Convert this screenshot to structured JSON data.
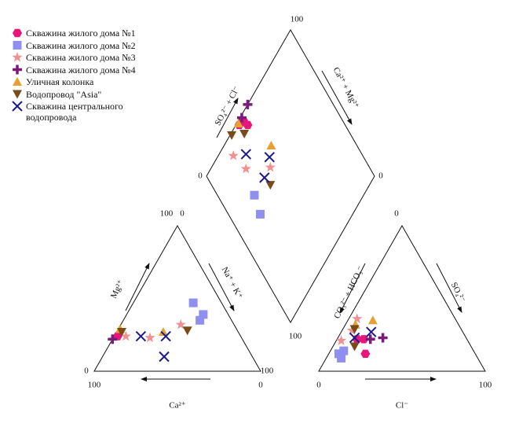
{
  "chart_data": {
    "type": "piper",
    "cation": {
      "axes": {
        "Mg": {
          "label": "Mg²⁺",
          "ticks": [
            0,
            100
          ]
        },
        "NaK": {
          "label": "Na⁺ + K⁺",
          "ticks": [
            0,
            100
          ]
        },
        "Ca": {
          "label": "Ca²⁺",
          "ticks": [
            100,
            0
          ]
        }
      }
    },
    "anion": {
      "axes": {
        "CO3": {
          "label": "CO₃²⁻ + HCO₃⁻",
          "ticks": [
            0,
            100
          ]
        },
        "SO4": {
          "label": "SO₄²⁻"
        },
        "Cl": {
          "label": "Cl⁻",
          "ticks": [
            0,
            100
          ]
        }
      }
    },
    "diamond": {
      "axes": {
        "SO4_Cl": {
          "label": "SO₄²⁻ + Cl⁻",
          "ticks": [
            0,
            100
          ]
        },
        "Ca_Mg": {
          "label": "Ca²⁺ + Mg²⁺",
          "ticks": [
            0
          ]
        }
      }
    },
    "series": [
      {
        "name": "Скважина жилого дома №1",
        "color": "#e8157a",
        "marker": "hexagon",
        "cation": {
          "Ca": [
            74
          ],
          "Mg": [
            24
          ]
        },
        "anion": {
          "Cl": [
            12,
            16,
            22
          ],
          "SO4": [
            22,
            22,
            12
          ]
        },
        "diamond": {
          "SO4_Cl": [
            41,
            42,
            37
          ],
          "Ca_Mg": [
            97,
            93,
            98
          ]
        }
      },
      {
        "name": "Скважина жилого дома №2",
        "color": "#8f8ff0",
        "marker": "square",
        "cation": {
          "Ca": [
            17,
            15,
            19
          ],
          "Mg": [
            47,
            39,
            35
          ]
        },
        "anion": {
          "Cl": [
            6,
            8,
            9
          ],
          "SO4": [
            12,
            14,
            9
          ]
        },
        "diamond": {
          "SO4_Cl": [
            22,
            19
          ],
          "Ca_Mg": [
            65,
            55
          ]
        }
      },
      {
        "name": "Скважина жилого дома №3",
        "color": "#f09090",
        "marker": "star",
        "cation": {
          "Ca": [
            69,
            55,
            32
          ],
          "Mg": [
            24,
            23,
            32
          ]
        },
        "anion": {
          "Cl": [
            5,
            3,
            6
          ],
          "SO4": [
            36,
            21,
            28
          ]
        },
        "diamond": {
          "SO4_Cl": [
            23,
            26,
            41
          ],
          "Ca_Mg": [
            91,
            79,
            65
          ]
        }
      },
      {
        "name": "Скважина жилого дома №4",
        "color": "#7a1a7a",
        "marker": "plus",
        "cation": {
          "Ca": [
            78
          ],
          "Mg": [
            22
          ]
        },
        "anion": {
          "Cl": [
            27,
            20
          ],
          "SO4": [
            23,
            22
          ]
        },
        "diamond": {
          "SO4_Cl": [
            49,
            41
          ],
          "Ca_Mg": [
            100,
            99
          ]
        }
      },
      {
        "name": "Уличная колонка",
        "color": "#e8a030",
        "marker": "triangle-up",
        "cation": {
          "Ca": [
            70,
            45
          ],
          "Mg": [
            29,
            27
          ]
        },
        "anion": {
          "Cl": [
            15,
            6
          ],
          "SO4": [
            35,
            32
          ]
        },
        "diamond": {
          "SO4_Cl": [
            49,
            37
          ],
          "Ca_Mg": [
            72,
            99
          ]
        }
      },
      {
        "name": "Водопровод \"Asia\"",
        "color": "#7b4a1a",
        "marker": "triangle-down",
        "cation": {
          "Ca": [
            70,
            30
          ],
          "Mg": [
            27,
            28
          ]
        },
        "anion": {
          "Cl": [
            7,
            13
          ],
          "SO4": [
            29,
            17
          ]
        },
        "diamond": {
          "SO4_Cl": [
            29,
            37,
            35
          ],
          "Ca_Mg": [
            99,
            92,
            59
          ]
        }
      },
      {
        "name": "Скважина центрального водопровода",
        "color": "#1a1a8a",
        "marker": "x",
        "cation": {
          "Ca": [
            60,
            45,
            53
          ],
          "Mg": [
            24,
            24,
            10
          ]
        },
        "anion": {
          "Cl": [
            10,
            18
          ],
          "SO4": [
            23,
            27
          ]
        },
        "diamond": {
          "SO4_Cl": [
            31,
            44,
            34
          ],
          "Ca_Mg": [
            84,
            69,
            65
          ]
        }
      }
    ]
  }
}
